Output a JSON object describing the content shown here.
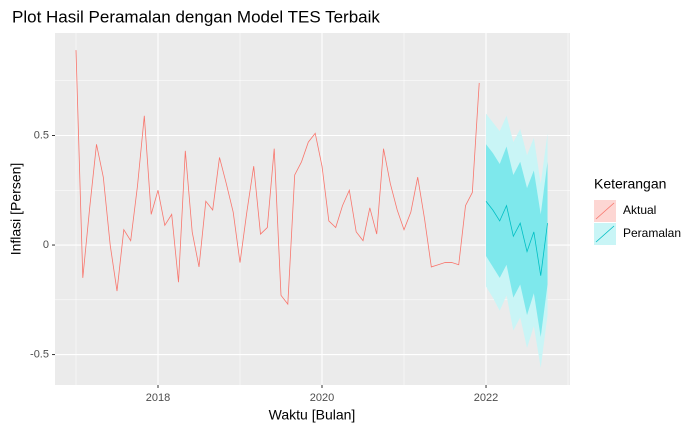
{
  "chart_data": {
    "type": "line",
    "title": "Plot Hasil Peramalan dengan Model TES Terbaik",
    "x_label": "Waktu [Bulan]",
    "y_label": "Inflasi [Persen]",
    "legend_title": "Keterangan",
    "legend_position": "right",
    "grid": true,
    "xlim": [
      2016.744,
      2023.024
    ],
    "xticks": [
      2018,
      2020,
      2022
    ],
    "ylim": [
      -0.639,
      0.968
    ],
    "yticks": [
      -0.5,
      0.0,
      0.5
    ],
    "series": [
      {
        "name": "Aktual",
        "color": "#F8766D",
        "x": [
          2017,
          2017.083,
          2017.167,
          2017.25,
          2017.333,
          2017.417,
          2017.5,
          2017.583,
          2017.667,
          2017.75,
          2017.833,
          2017.917,
          2018,
          2018.083,
          2018.167,
          2018.25,
          2018.333,
          2018.417,
          2018.5,
          2018.583,
          2018.667,
          2018.75,
          2018.833,
          2018.917,
          2019,
          2019.083,
          2019.167,
          2019.25,
          2019.333,
          2019.417,
          2019.5,
          2019.583,
          2019.667,
          2019.75,
          2019.833,
          2019.917,
          2020,
          2020.083,
          2020.167,
          2020.25,
          2020.333,
          2020.417,
          2020.5,
          2020.583,
          2020.667,
          2020.75,
          2020.833,
          2020.917,
          2021,
          2021.083,
          2021.167,
          2021.25,
          2021.333,
          2021.417,
          2021.5,
          2021.583,
          2021.667,
          2021.75,
          2021.833,
          2021.917
        ],
        "values": [
          0.89,
          -0.15,
          0.17,
          0.46,
          0.31,
          0.0,
          -0.21,
          0.07,
          0.02,
          0.27,
          0.59,
          0.14,
          0.25,
          0.09,
          0.14,
          -0.17,
          0.43,
          0.06,
          -0.1,
          0.2,
          0.16,
          0.4,
          0.28,
          0.15,
          -0.08,
          0.15,
          0.36,
          0.05,
          0.08,
          0.44,
          -0.23,
          -0.27,
          0.32,
          0.38,
          0.47,
          0.51,
          0.36,
          0.11,
          0.08,
          0.18,
          0.25,
          0.06,
          0.02,
          0.17,
          0.05,
          0.44,
          0.28,
          0.16,
          0.07,
          0.15,
          0.31,
          0.12,
          -0.1,
          -0.09,
          -0.08,
          -0.08,
          -0.09,
          0.18,
          0.24,
          0.74
        ]
      },
      {
        "name": "Peramalan",
        "color": "#00BFC4",
        "band80_color": "#7EE8EC",
        "band95_color": "#C9F5F6",
        "x": [
          2022,
          2022.083,
          2022.167,
          2022.25,
          2022.333,
          2022.417,
          2022.5,
          2022.583,
          2022.667,
          2022.75
        ],
        "values": [
          0.2,
          0.16,
          0.11,
          0.18,
          0.04,
          0.1,
          -0.03,
          0.06,
          -0.14,
          0.1
        ],
        "lo80": [
          -0.05,
          -0.1,
          -0.15,
          -0.09,
          -0.24,
          -0.18,
          -0.32,
          -0.22,
          -0.42,
          -0.18
        ],
        "hi80": [
          0.46,
          0.42,
          0.37,
          0.45,
          0.32,
          0.38,
          0.26,
          0.34,
          0.14,
          0.38
        ],
        "lo95": [
          -0.19,
          -0.24,
          -0.3,
          -0.23,
          -0.39,
          -0.33,
          -0.47,
          -0.37,
          -0.56,
          -0.32
        ],
        "hi95": [
          0.6,
          0.56,
          0.52,
          0.59,
          0.47,
          0.53,
          0.41,
          0.49,
          0.28,
          0.51
        ]
      }
    ]
  }
}
